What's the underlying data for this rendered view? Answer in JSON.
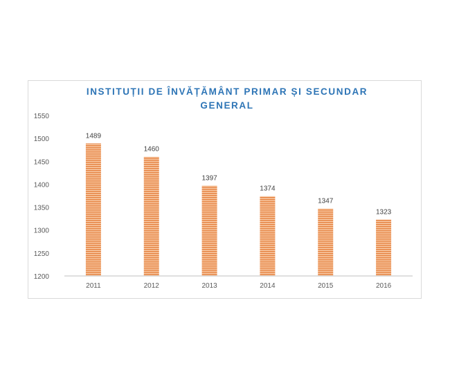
{
  "chart_data": {
    "type": "bar",
    "title_lines": [
      "INSTITUȚII DE ÎNVĂȚĂMÂNT PRIMAR ȘI SECUNDAR",
      "GENERAL"
    ],
    "categories": [
      "2011",
      "2012",
      "2013",
      "2014",
      "2015",
      "2016"
    ],
    "values": [
      1489,
      1460,
      1397,
      1374,
      1347,
      1323
    ],
    "data_labels": [
      "1489",
      "1460",
      "1397",
      "1374",
      "1347",
      "1323"
    ],
    "y_ticks": [
      "1200",
      "1250",
      "1300",
      "1350",
      "1400",
      "1450",
      "1500",
      "1550"
    ],
    "ylim": [
      1200,
      1550
    ],
    "xlabel": "",
    "ylabel": "",
    "grid": false,
    "legend": "none",
    "bar_color": "#f4b183",
    "bar_stripe_color": "#e07b39",
    "axis_color": "#bfbfbf"
  }
}
